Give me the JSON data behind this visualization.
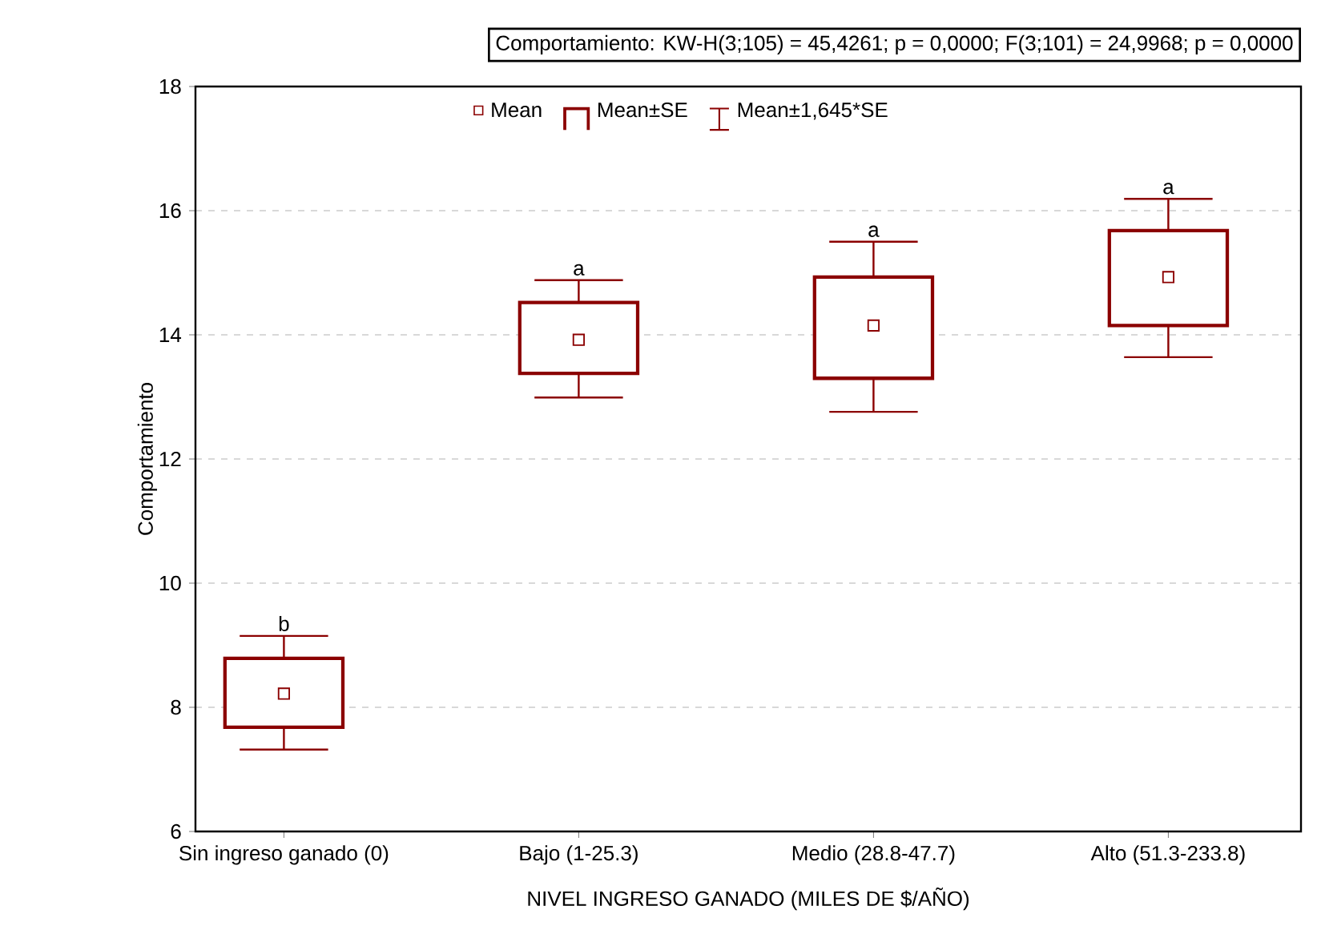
{
  "chart_data": {
    "type": "box",
    "title": "Comportamiento:  KW-H(3;105) = 45,4261; p = 0,0000;  F(3;101) = 24,9968; p = 0,0000",
    "xlabel": "NIVEL INGRESO GANADO (MILES DE $/AÑO)",
    "ylabel": "Comportamiento",
    "categories": [
      "Sin ingreso ganado (0)",
      "Bajo (1-25.3)",
      "Medio (28.8-47.7)",
      "Alto (51.3-233.8)"
    ],
    "color": "#8b0000",
    "boxes": [
      {
        "low": 7.32,
        "q1": 7.68,
        "median": 8.22,
        "q3": 8.79,
        "high": 9.15
      },
      {
        "low": 12.99,
        "q1": 13.38,
        "median": 13.92,
        "q3": 14.52,
        "high": 14.88
      },
      {
        "low": 12.76,
        "q1": 13.3,
        "median": 14.15,
        "q3": 14.93,
        "high": 15.5
      },
      {
        "low": 13.64,
        "q1": 14.15,
        "median": 14.93,
        "q3": 15.68,
        "high": 16.19
      }
    ],
    "ylim": [
      6,
      18
    ],
    "yticks": [
      6,
      8,
      10,
      12,
      14,
      16,
      18
    ],
    "grid": "y",
    "annotations": [
      "b",
      "a",
      "a",
      "a",
      "Mean",
      "Mean±SE",
      "Mean±1,645*SE"
    ]
  }
}
